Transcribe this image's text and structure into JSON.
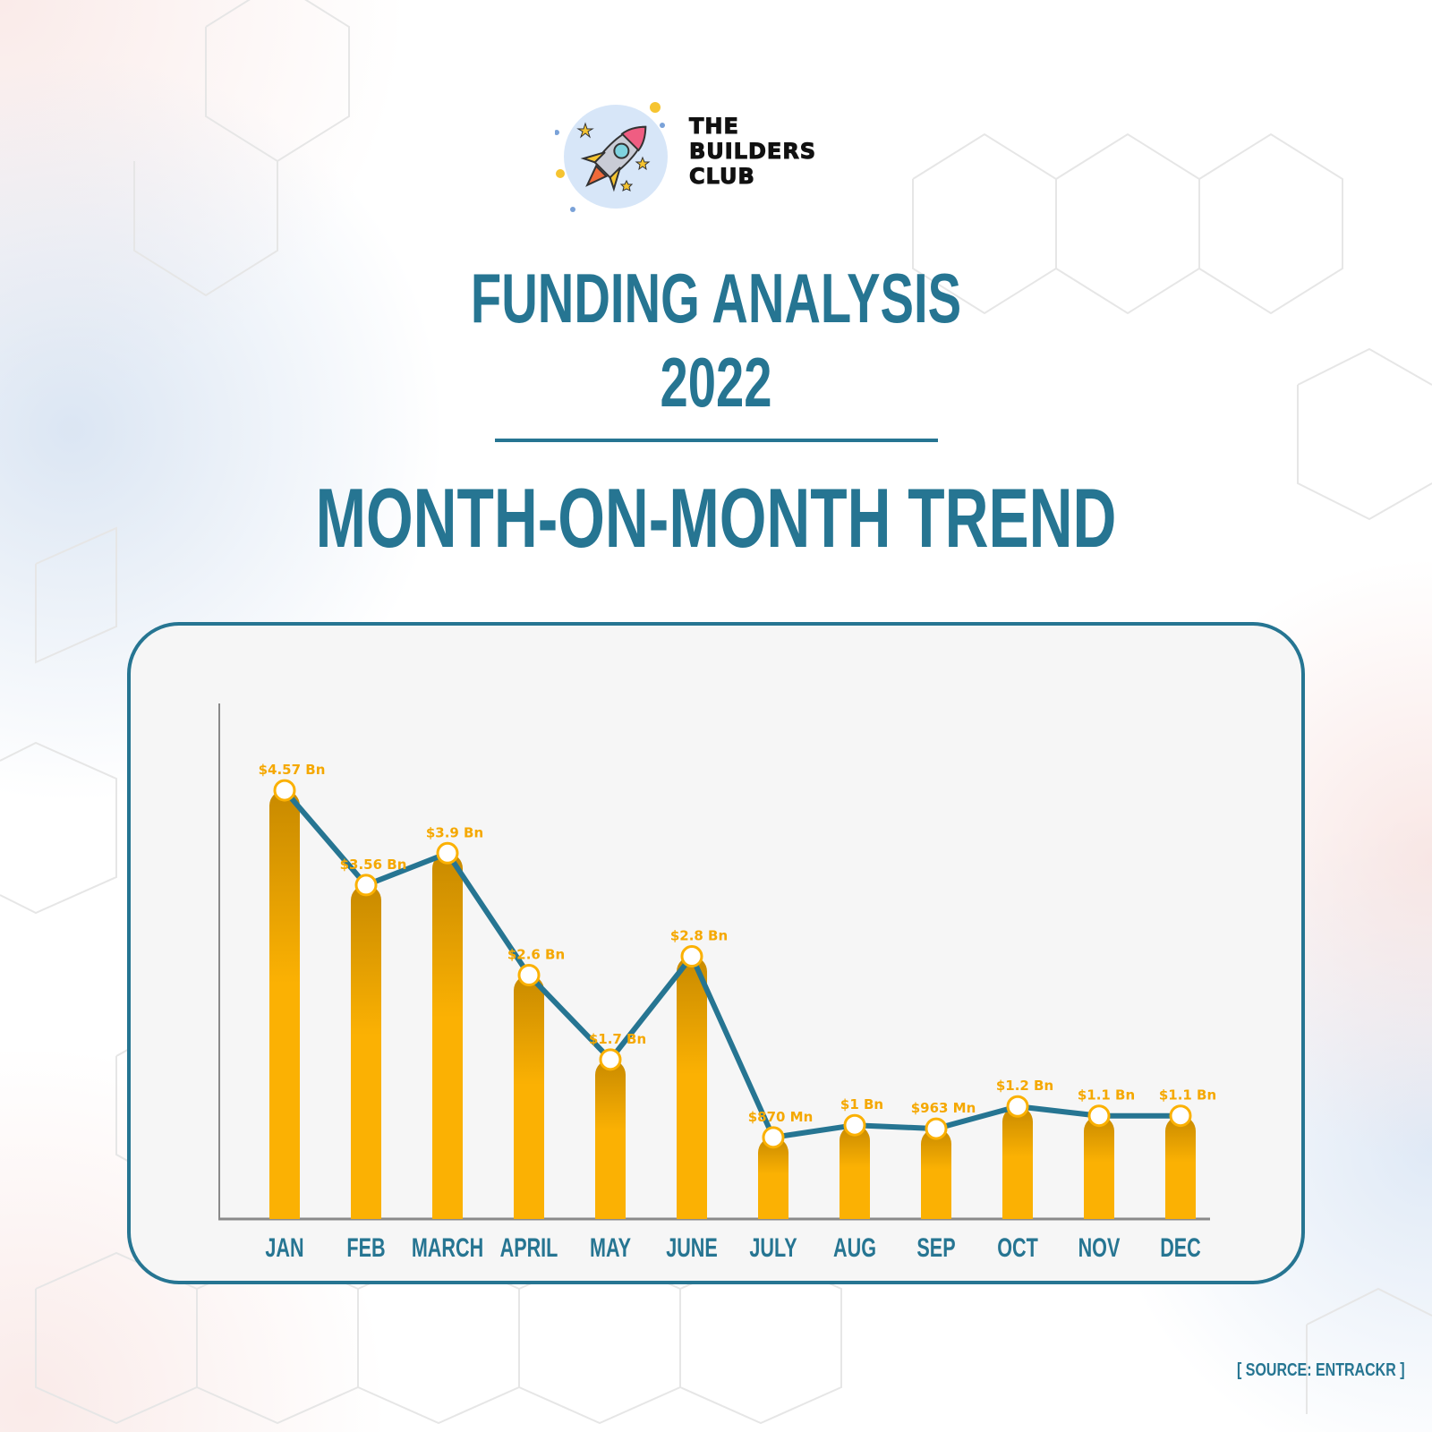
{
  "brand": {
    "line1": "THE",
    "line2": "BUILDERS",
    "line3": "CLUB"
  },
  "header": {
    "title_line1": "FUNDING ANALYSIS",
    "title_line2": "2022",
    "subtitle": "MONTH-ON-MONTH TREND"
  },
  "source": "[ SOURCE: ENTRACKR ]",
  "colors": {
    "primary": "#267592",
    "bar_top": "#C88A00",
    "bar_bottom": "#FBB103",
    "label": "#F5A800"
  },
  "chart_data": {
    "type": "bar",
    "categories": [
      "JAN",
      "FEB",
      "MARCH",
      "APRIL",
      "MAY",
      "JUNE",
      "JULY",
      "AUG",
      "SEP",
      "OCT",
      "NOV",
      "DEC"
    ],
    "values": [
      4.57,
      3.56,
      3.9,
      2.6,
      1.7,
      2.8,
      0.87,
      1.0,
      0.963,
      1.2,
      1.1,
      1.1
    ],
    "data_labels": [
      "$4.57 Bn",
      "$3.56 Bn",
      "$3.9 Bn",
      "$2.6 Bn",
      "$1.7 Bn",
      "$2.8 Bn",
      "$870 Mn",
      "$1 Bn",
      "$963 Mn",
      "$1.2 Bn",
      "$1.1 Bn",
      "$1.1 Bn"
    ],
    "overlay": "line",
    "ylim": [
      0,
      5.5
    ]
  }
}
